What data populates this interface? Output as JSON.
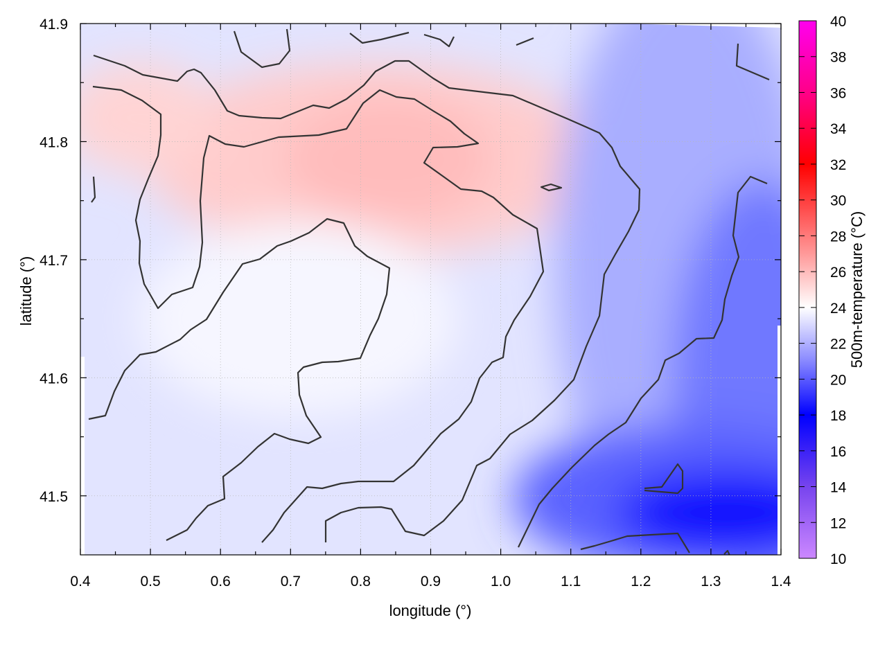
{
  "chart_data": {
    "type": "heatmap",
    "xlabel": "longitude (°)",
    "ylabel": "latitude (°)",
    "colorbar_label": "500m-temperature (°C)",
    "xlim": [
      0.4,
      1.4
    ],
    "ylim": [
      41.45,
      41.9
    ],
    "x_ticks": [
      "0.4",
      "0.5",
      "0.6",
      "0.7",
      "0.8",
      "0.9",
      "1.0",
      "1.1",
      "1.2",
      "1.3",
      "1.4"
    ],
    "y_ticks": [
      "41.5",
      "41.6",
      "41.7",
      "41.8",
      "41.9"
    ],
    "colorbar_range": [
      10,
      40
    ],
    "colorbar_ticks": [
      "10",
      "12",
      "14",
      "16",
      "18",
      "20",
      "22",
      "24",
      "26",
      "28",
      "30",
      "32",
      "34",
      "36",
      "38",
      "40"
    ],
    "colorbar_colors": [
      {
        "value": 10,
        "color": "#cc88ff"
      },
      {
        "value": 14,
        "color": "#7744ee"
      },
      {
        "value": 18,
        "color": "#0000ff"
      },
      {
        "value": 21,
        "color": "#8888ff"
      },
      {
        "value": 24,
        "color": "#ffffff"
      },
      {
        "value": 27,
        "color": "#ff9999"
      },
      {
        "value": 32,
        "color": "#ff0000"
      },
      {
        "value": 36,
        "color": "#ff0088"
      },
      {
        "value": 40,
        "color": "#ff00ee"
      }
    ],
    "grid": true,
    "warm_region_center": [
      0.82,
      41.77
    ],
    "cold_region_center": [
      1.26,
      41.48
    ],
    "contour_color": "#333333"
  }
}
